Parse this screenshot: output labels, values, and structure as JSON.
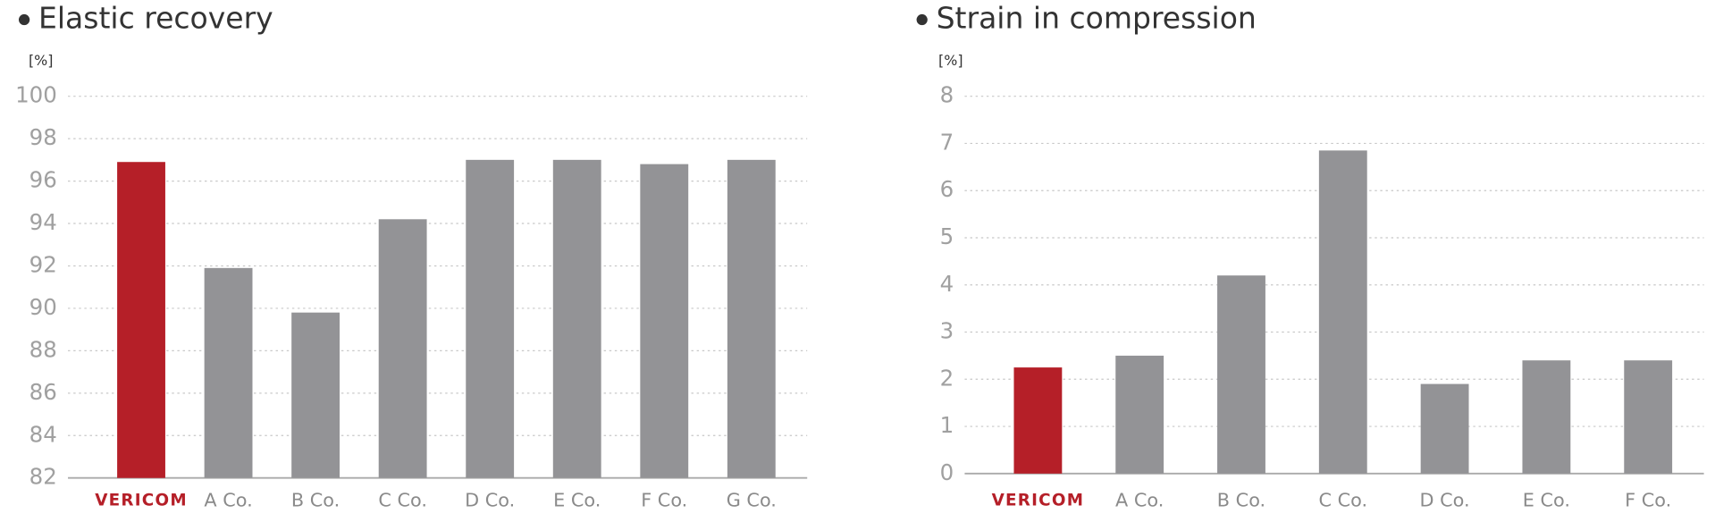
{
  "chart_data": [
    {
      "type": "bar",
      "title": "Elastic recovery",
      "y_label": "[%]",
      "categories": [
        "VERICOM",
        "A Co.",
        "B Co.",
        "C Co.",
        "D Co.",
        "E Co.",
        "F Co.",
        "G Co."
      ],
      "values": [
        96.9,
        91.9,
        89.8,
        94.2,
        97.0,
        97.0,
        96.8,
        97.0
      ],
      "colors": [
        "#b51f28",
        "#939396",
        "#939396",
        "#939396",
        "#939396",
        "#939396",
        "#939396",
        "#939396"
      ],
      "ylim": [
        82,
        100
      ],
      "yticks": [
        82,
        84,
        86,
        88,
        90,
        92,
        94,
        96,
        98,
        100
      ],
      "grid": true
    },
    {
      "type": "bar",
      "title": "Strain in compression",
      "y_label": "[%]",
      "categories": [
        "VERICOM",
        "A Co.",
        "B Co.",
        "C Co.",
        "D Co.",
        "E Co.",
        "F Co."
      ],
      "values": [
        2.25,
        2.5,
        4.2,
        6.85,
        1.9,
        2.4,
        2.4
      ],
      "colors": [
        "#b51f28",
        "#939396",
        "#939396",
        "#939396",
        "#939396",
        "#939396",
        "#939396"
      ],
      "ylim": [
        0,
        8
      ],
      "yticks": [
        0,
        1,
        2,
        3,
        4,
        5,
        6,
        7,
        8
      ],
      "grid": true
    }
  ]
}
